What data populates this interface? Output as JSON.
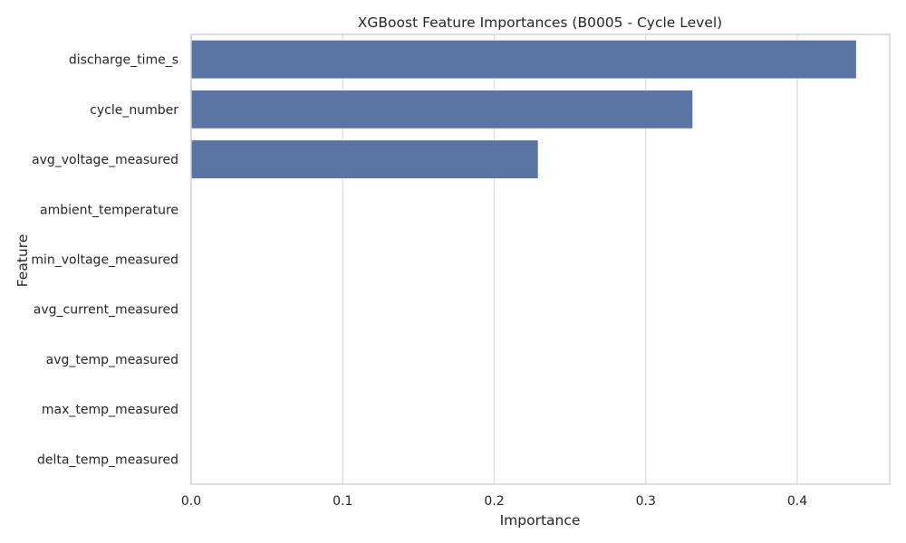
{
  "chart_data": {
    "type": "bar",
    "orientation": "horizontal",
    "title": "XGBoost Feature Importances (B0005 - Cycle Level)",
    "xlabel": "Importance",
    "ylabel": "Feature",
    "categories": [
      "discharge_time_s",
      "cycle_number",
      "avg_voltage_measured",
      "ambient_temperature",
      "min_voltage_measured",
      "avg_current_measured",
      "avg_temp_measured",
      "max_temp_measured",
      "delta_temp_measured"
    ],
    "values": [
      0.439,
      0.331,
      0.229,
      0.0,
      0.0,
      0.0,
      0.0,
      0.0,
      0.0
    ],
    "xlim": [
      0,
      0.461
    ],
    "xticks": [
      0.0,
      0.1,
      0.2,
      0.3,
      0.4
    ],
    "xtick_labels": [
      "0.0",
      "0.1",
      "0.2",
      "0.3",
      "0.4"
    ],
    "grid": "vertical",
    "legend": "none",
    "colors": {
      "bar": "#5975a4",
      "grid": "#dddddd",
      "spine": "#cccccc",
      "text": "#262626"
    }
  }
}
